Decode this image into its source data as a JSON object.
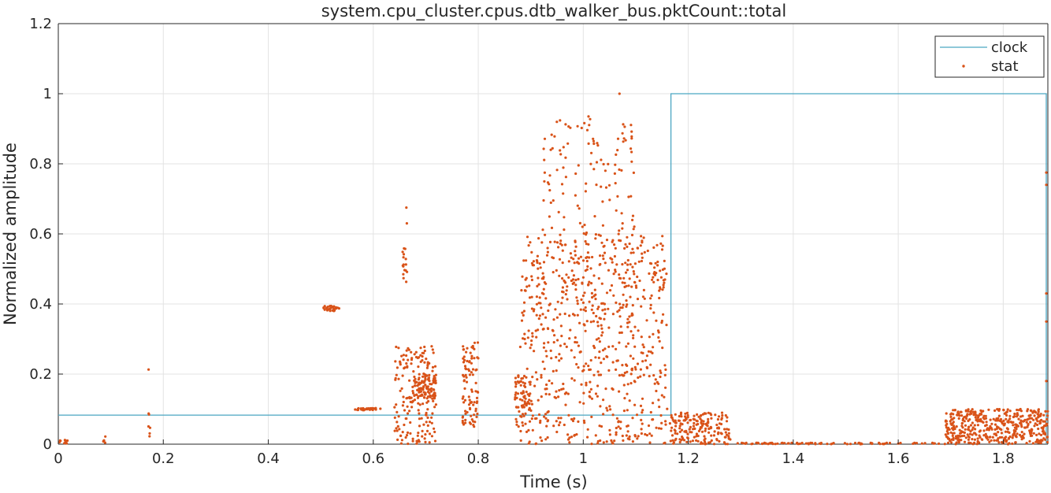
{
  "chart_data": {
    "type": "scatter",
    "title": "system.cpu_cluster.cpus.dtb_walker_bus.pktCount::total",
    "xlabel": "Time (s)",
    "ylabel": "Normalized amplitude",
    "xlim": [
      0,
      1.885
    ],
    "ylim": [
      0,
      1.2
    ],
    "x_ticks": [
      "0",
      "0.2",
      "0.4",
      "0.6",
      "0.8",
      "1",
      "1.2",
      "1.4",
      "1.6",
      "1.8"
    ],
    "y_ticks": [
      "0",
      "0.2",
      "0.4",
      "0.6",
      "0.8",
      "1",
      "1.2"
    ],
    "grid": true,
    "legend_position": "top-right",
    "series": [
      {
        "name": "clock",
        "kind": "line",
        "color": "#4aa6c2",
        "x": [
          0,
          1.167,
          1.167,
          1.882,
          1.882
        ],
        "y": [
          0.083,
          0.083,
          1.0,
          1.0,
          0.0
        ]
      },
      {
        "name": "stat",
        "kind": "points",
        "color": "#d95319",
        "clusters": [
          {
            "x": [
              0.0,
              0.02
            ],
            "y": [
              0.0,
              0.012
            ],
            "count": 12
          },
          {
            "x": [
              0.085,
              0.09
            ],
            "y": [
              0.0,
              0.025
            ],
            "count": 5
          },
          {
            "x": [
              0.17,
              0.175
            ],
            "y": [
              0.0,
              0.1
            ],
            "count": 6
          },
          {
            "x": [
              0.505,
              0.535
            ],
            "y": [
              0.38,
              0.395
            ],
            "count": 30
          },
          {
            "x": [
              0.565,
              0.615
            ],
            "y": [
              0.097,
              0.103
            ],
            "count": 30
          },
          {
            "x": [
              0.655,
              0.665
            ],
            "y": [
              0.46,
              0.56
            ],
            "count": 16
          },
          {
            "x": [
              0.64,
              0.72
            ],
            "y": [
              0.0,
              0.28
            ],
            "count": 180
          },
          {
            "x": [
              0.675,
              0.72
            ],
            "y": [
              0.13,
              0.2
            ],
            "count": 90
          },
          {
            "x": [
              0.77,
              0.8
            ],
            "y": [
              0.05,
              0.3
            ],
            "count": 90
          },
          {
            "x": [
              0.87,
              0.9
            ],
            "y": [
              0.05,
              0.2
            ],
            "count": 70
          },
          {
            "x": [
              0.88,
              1.16
            ],
            "y": [
              0.0,
              0.6
            ],
            "count": 650
          },
          {
            "x": [
              0.92,
              1.1
            ],
            "y": [
              0.3,
              0.93
            ],
            "count": 200
          },
          {
            "x": [
              1.165,
              1.28
            ],
            "y": [
              0.0,
              0.09
            ],
            "count": 180
          },
          {
            "x": [
              1.28,
              1.69
            ],
            "y": [
              0.0,
              0.004
            ],
            "count": 80
          },
          {
            "x": [
              1.69,
              1.885
            ],
            "y": [
              0.0,
              0.1
            ],
            "count": 450
          }
        ],
        "notable_points": [
          {
            "x": 0.172,
            "y": 0.213
          },
          {
            "x": 0.663,
            "y": 0.675
          },
          {
            "x": 0.664,
            "y": 0.63
          },
          {
            "x": 1.01,
            "y": 0.935
          },
          {
            "x": 1.069,
            "y": 1.0
          },
          {
            "x": 1.882,
            "y": 0.775
          },
          {
            "x": 1.882,
            "y": 0.74
          },
          {
            "x": 1.882,
            "y": 0.43
          },
          {
            "x": 1.882,
            "y": 0.35
          },
          {
            "x": 1.882,
            "y": 0.18
          }
        ]
      }
    ]
  }
}
